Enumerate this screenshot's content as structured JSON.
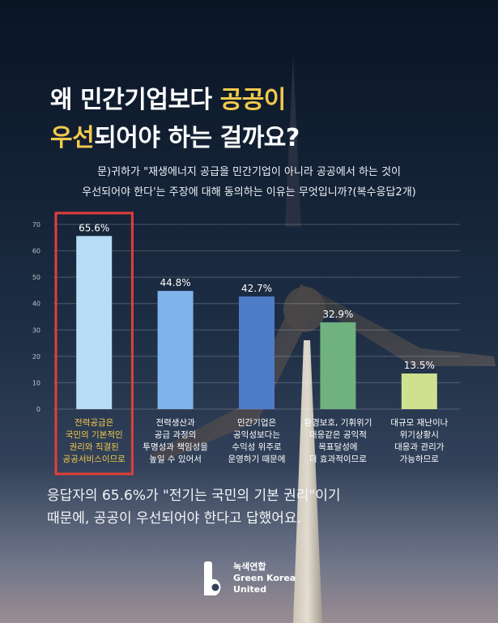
{
  "title": {
    "line1_a": "왜 민간기업보다 ",
    "line1_b": "공공이",
    "line2_a": "우선",
    "line2_b": "되어야 하는 걸까요?"
  },
  "question": {
    "line1": "문)귀하가 \"재생에너지 공급을 민간기업이 아니라 공공에서 하는 것이",
    "line2": "우선되어야 한다'는 주장에 대해 동의하는 이유는 무엇입니까?(복수응답2개)"
  },
  "chart_data": {
    "type": "bar",
    "title": "",
    "ylim": [
      0,
      70
    ],
    "yticks": [
      0,
      10,
      20,
      30,
      40,
      50,
      60,
      70
    ],
    "grid": true,
    "categories": [
      [
        "전력공급은",
        "국민의 기본적인",
        "권리와 직결된",
        "공공서비스이므로"
      ],
      [
        "전력생산과",
        "공급 과정의",
        "투명성과 책임성을",
        "높일 수 있어서"
      ],
      [
        "민간기업은",
        "공익성보다는",
        "수익성 위주로",
        "운영하기 때문에"
      ],
      [
        "환경보호, 기휘위기",
        "대응같은 공익적",
        "목표달성에",
        "더 효과적이므로"
      ],
      [
        "대규모 재난이나",
        "위기상황시",
        "대응과 관리가",
        "가능하므로"
      ]
    ],
    "values": [
      65.6,
      44.8,
      42.7,
      32.9,
      13.5
    ],
    "value_labels": [
      "65.6%",
      "44.8%",
      "42.7%",
      "32.9%",
      "13.5%"
    ],
    "bar_colors": [
      "#b7dcf6",
      "#7fb4ea",
      "#4f7cc9",
      "#6fb27f",
      "#cfe18f"
    ],
    "highlight_index": 0,
    "highlight_color": "#e0403a",
    "highlight_label_color": "#f2c94c"
  },
  "summary": {
    "line1": "응답자의  65.6%가 \"전기는 국민의 기본 권리\"이기",
    "line2": "때문에, 공공이 우선되어야 한다고 답했어요."
  },
  "logo": {
    "line1": "녹색연합",
    "line2": "Green Korea",
    "line3": "United"
  }
}
